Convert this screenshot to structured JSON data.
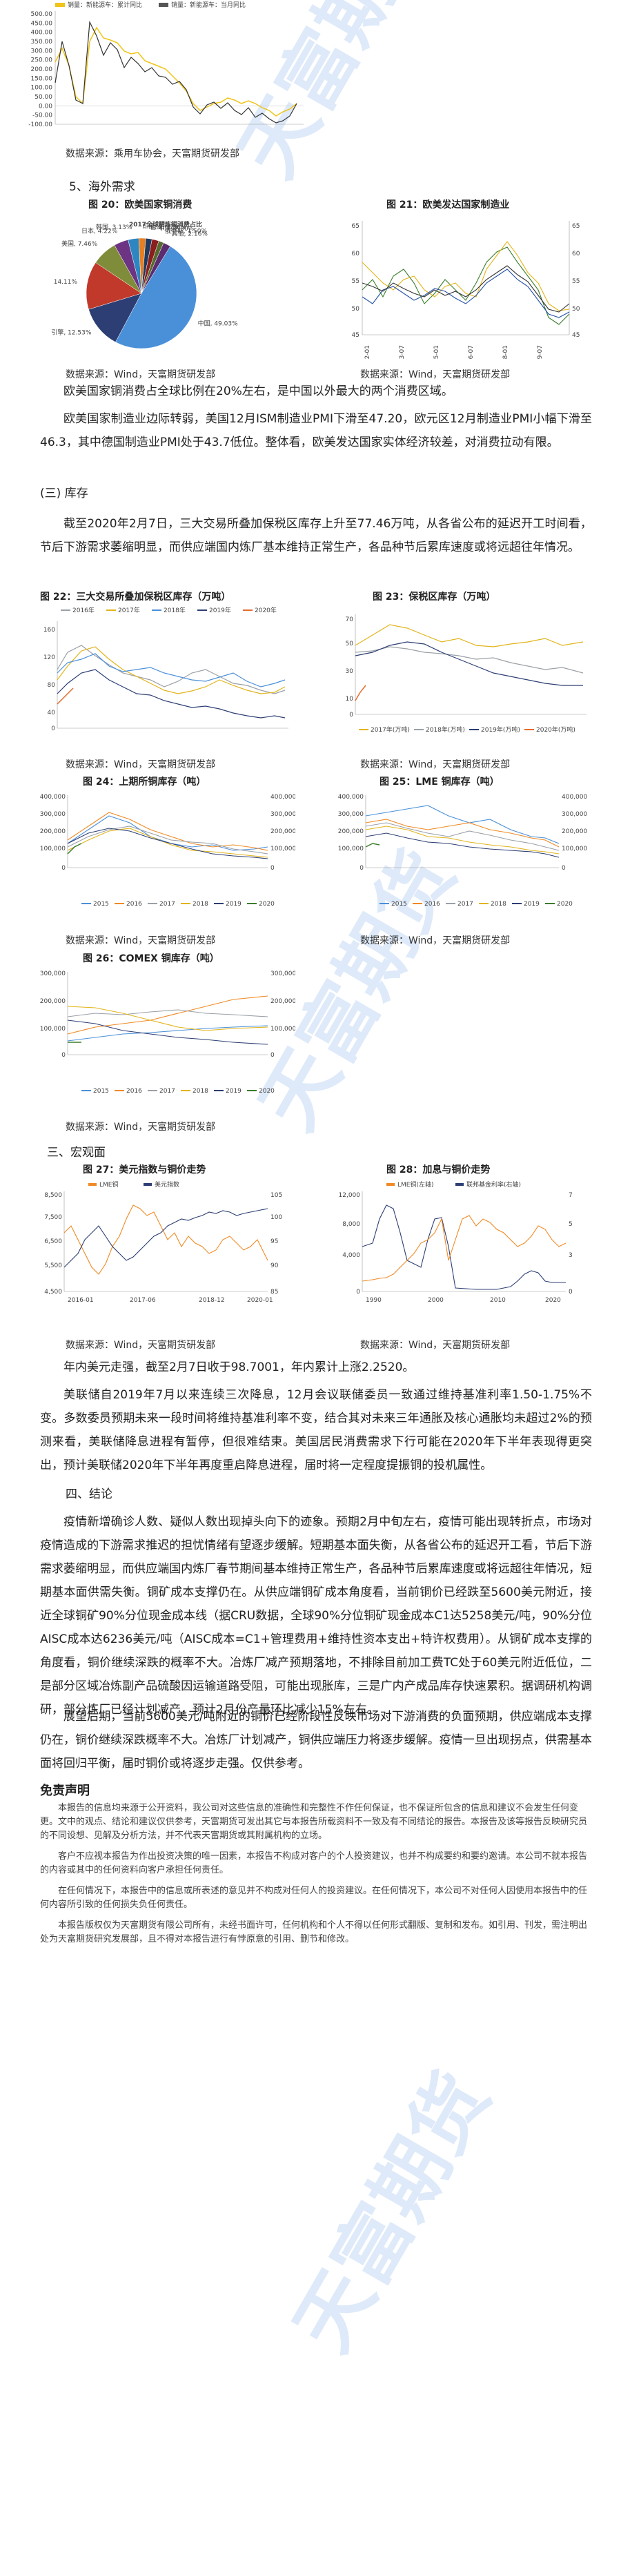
{
  "top_chart": {
    "legend": [
      "销量：新能源车：累计同比",
      "销量：新能源车：当月同比"
    ],
    "y_ticks": [
      "500.00",
      "450.00",
      "400.00",
      "350.00",
      "300.00",
      "250.00",
      "200.00",
      "150.00",
      "100.00",
      "50.00",
      "0.00",
      "-50.00",
      "-100.00"
    ],
    "source": "数据来源：乘用车协会，天富期货研发部"
  },
  "sec5": {
    "heading": "5、海外需求"
  },
  "fig20": {
    "title": "图 20：欧美国家铜消费",
    "pie_title": "2017全球精炼铜消费占比",
    "source": "数据来源：Wind，天富期货研发部"
  },
  "fig21": {
    "title": "图 21：欧美发达国家制造业",
    "source": "数据来源：Wind，天富期货研发部"
  },
  "chart_data": [
    {
      "type": "pie",
      "title": "2017全球精炼铜消费占比",
      "slices": [
        {
          "label": "中国",
          "value": 49.03
        },
        {
          "label": "引擎",
          "value": 12.53
        },
        {
          "label": "欧洲",
          "value": 14.11
        },
        {
          "label": "美国",
          "value": 7.46
        },
        {
          "label": "日本",
          "value": 4.22
        },
        {
          "label": "韩国",
          "value": 3.13
        },
        {
          "label": "印度",
          "value": 2.0
        },
        {
          "label": "台湾",
          "value": 1.86
        },
        {
          "label": "中东",
          "value": 2.0
        },
        {
          "label": "俄罗斯",
          "value": 1.5
        },
        {
          "label": "其他",
          "value": 2.16
        }
      ]
    }
  ],
  "p1": "欧美国家铜消费占全球比例在20%左右，是中国以外最大的两个消费区域。",
  "p2": "欧美国家制造业边际转弱，美国12月ISM制造业PMI下滑至47.20，欧元区12月制造业PMI小幅下滑至46.3，其中德国制造业PMI处于43.7低位。整体看，欧美发达国家实体经济较差，对消费拉动有限。",
  "sec_inventory": {
    "heading": "(三) 库存"
  },
  "p3": "截至2020年2月7日，三大交易所叠加保税区库存上升至77.46万吨，从各省公布的延迟开工时间看，节后下游需求萎缩明显，而供应端国内炼厂基本维持正常生产，各品种节后累库速度或将远超往年情况。",
  "fig22": {
    "title": "图 22：三大交易所叠加保税区库存（万吨）",
    "legend": [
      "2016年",
      "2017年",
      "2018年",
      "2019年",
      "2020年"
    ]
  },
  "fig23": {
    "title": "图 23：保税区库存（万吨）",
    "legend": [
      "2017年(万吨)",
      "2018年(万吨)",
      "2019年(万吨)",
      "2020年(万吨)"
    ]
  },
  "src22": "数据来源：Wind，天富期货研发部",
  "src23": "数据来源：Wind，天富期货研发部",
  "fig24": {
    "title": "图 24：上期所铜库存（吨）",
    "legend": [
      "2015",
      "2016",
      "2017",
      "2018",
      "2019",
      "2020"
    ]
  },
  "fig25": {
    "title": "图 25：LME 铜库存（吨）",
    "legend": [
      "2015",
      "2016",
      "2017",
      "2018",
      "2019",
      "2020"
    ]
  },
  "src24": "数据来源：Wind，天富期货研发部",
  "src25": "数据来源：Wind，天富期货研发部",
  "fig26": {
    "title": "图 26：COMEX 铜库存（吨）",
    "legend": [
      "2015",
      "2016",
      "2017",
      "2018",
      "2019",
      "2020"
    ]
  },
  "src26": "数据来源：Wind，天富期货研发部",
  "sec_macro": {
    "heading": "三、宏观面"
  },
  "fig27": {
    "title": "图 27：美元指数与铜价走势",
    "legend": [
      "LME铜",
      "美元指数"
    ]
  },
  "fig28": {
    "title": "图 28：加息与铜价走势",
    "legend": [
      "LME铜(左轴)",
      "联邦基金利率(右轴)"
    ]
  },
  "src27": "数据来源：Wind，天富期货研发部",
  "src28": "数据来源：Wind，天富期货研发部",
  "p4": "年内美元走强，截至2月7日收于98.7001，年内累计上涨2.2520。",
  "p5": "美联储自2019年7月以来连续三次降息，12月会议联储委员一致通过维持基准利率1.50-1.75%不变。多数委员预期未来一段时间将维持基准利率不变，结合其对未来三年通胀及核心通胀均未超过2%的预测来看，美联储降息进程有暂停，但很难结束。美国居民消费需求下行可能在2020年下半年表现得更突出，预计美联储2020年下半年再度重启降息进程，届时将一定程度提振铜的投机属性。",
  "sec_conclusion": {
    "heading": "四、结论"
  },
  "p6": "疫情新增确诊人数、疑似人数出现掉头向下的迹象。预期2月中旬左右，疫情可能出现转折点，市场对疫情造成的下游需求推迟的担忧情绪有望逐步缓解。短期基本面失衡，从各省公布的延迟开工看，节后下游需求萎缩明显，而供应端国内炼厂春节期间基本维持正常生产，各品种节后累库速度或将远超往年情况，短期基本面供需失衡。铜矿成本支撑仍在。从供应端铜矿成本角度看，当前铜价已经跌至5600美元附近，接近全球铜矿90%分位现金成本线（据CRU数据，全球90%分位铜矿现金成本C1达5258美元/吨，90%分位AISC成本达6236美元/吨（AISC成本=C1+管理费用+维持性资本支出+特许权费用）。从铜矿成本支撑的角度看，铜价继续深跌的概率不大。冶炼厂减产预期落地，不排除目前加工费TC处于60美元附近低位，二是部分区域冶炼副产品硫酸因运输道路受阻，可能出现胀库，三是广内产成品库存快速累积。据调研机构调研，部分炼厂已经计划减产，预计2月份产量环比减少15%左右。",
  "p7": "展望后期，当前5600美元/吨附近的铜价已经阶段性反映市场对下游消费的负面预期，供应端成本支撑仍在，铜价继续深跌概率不大。冶炼厂计划减产，铜供应端压力将逐步缓解。疫情一旦出现拐点，供需基本面将回归平衡，届时铜价或将逐步走强。仅供参考。",
  "disclaimer": {
    "title": "免责声明",
    "paragraphs": [
      "本报告的信息均来源于公开资料，我公司对这些信息的准确性和完整性不作任何保证，也不保证所包含的信息和建议不会发生任何变更。文中的观点、结论和建议仅供参考，天富期货可发出其它与本报告所载资料不一致及有不同结论的报告。本报告及该等报告反映研究员的不同设想、见解及分析方法，并不代表天富期货或其附属机构的立场。",
      "客户不应视本报告为作出投资决策的唯一因素，本报告不构成对客户的个人投资建议，也并不构成要约和要约邀请。本公司不就本报告的内容或其中的任何资料向客户承担任何责任。",
      "在任何情况下，本报告中的信息或所表述的意见并不构成对任何人的投资建议。在任何情况下，本公司不对任何人因使用本报告中的任何内容所引致的任何损失负任何责任。",
      "本报告版权仅为天富期货有限公司所有，未经书面许可，任何机构和个人不得以任何形式翻版、复制和发布。如引用、刊发，需注明出处为天富期货研究发展部，且不得对本报告进行有悖原意的引用、删节和修改。"
    ]
  }
}
